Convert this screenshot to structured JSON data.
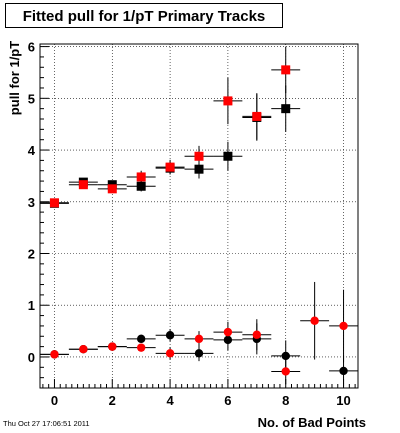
{
  "title": "Fitted pull for 1/pT Primary Tracks",
  "timestamp": "Thu Oct 27 17:06:51 2011",
  "chart_data": {
    "type": "scatter",
    "title": "Fitted pull for 1/pT Primary Tracks",
    "xlabel": "No. of Bad Points",
    "ylabel": "pull for 1/pT",
    "xlim": [
      -0.5,
      10.5
    ],
    "ylim": [
      -0.6,
      6.05
    ],
    "grid": true,
    "xticks": [
      0,
      2,
      4,
      6,
      8,
      10
    ],
    "yticks": [
      0,
      1,
      2,
      3,
      4,
      5,
      6
    ],
    "series": [
      {
        "marker": "square",
        "color": "#000000",
        "points": [
          {
            "x": 0,
            "y": 2.97,
            "err": 0.07
          },
          {
            "x": 1,
            "y": 3.38,
            "err": 0.06
          },
          {
            "x": 2,
            "y": 3.33,
            "err": 0.07
          },
          {
            "x": 3,
            "y": 3.3,
            "err": 0.1
          },
          {
            "x": 4,
            "y": 3.65,
            "err": 0.12
          },
          {
            "x": 5,
            "y": 3.63,
            "err": 0.18
          },
          {
            "x": 6,
            "y": 3.88,
            "err": 0.28
          },
          {
            "x": 7,
            "y": 4.63,
            "err": 0.45
          },
          {
            "x": 8,
            "y": 4.8,
            "err": 0.45
          }
        ]
      },
      {
        "marker": "square",
        "color": "#ff0000",
        "points": [
          {
            "x": 0,
            "y": 2.98,
            "err": 0.06
          },
          {
            "x": 1,
            "y": 3.33,
            "err": 0.07
          },
          {
            "x": 2,
            "y": 3.25,
            "err": 0.08
          },
          {
            "x": 3,
            "y": 3.48,
            "err": 0.12
          },
          {
            "x": 4,
            "y": 3.67,
            "err": 0.14
          },
          {
            "x": 5,
            "y": 3.88,
            "err": 0.2
          },
          {
            "x": 6,
            "y": 4.95,
            "err": 0.45
          },
          {
            "x": 7,
            "y": 4.65,
            "err": 0.45
          },
          {
            "x": 8,
            "y": 5.55,
            "err": 0.45
          }
        ]
      },
      {
        "marker": "circle",
        "color": "#000000",
        "points": [
          {
            "x": 0,
            "y": 0.05,
            "err": 0.03
          },
          {
            "x": 1,
            "y": 0.15,
            "err": 0.04
          },
          {
            "x": 2,
            "y": 0.2,
            "err": 0.05
          },
          {
            "x": 3,
            "y": 0.35,
            "err": 0.08
          },
          {
            "x": 4,
            "y": 0.42,
            "err": 0.12
          },
          {
            "x": 5,
            "y": 0.07,
            "err": 0.15
          },
          {
            "x": 6,
            "y": 0.33,
            "err": 0.2
          },
          {
            "x": 7,
            "y": 0.35,
            "err": 0.3
          },
          {
            "x": 8,
            "y": 0.02,
            "err": 0.3
          },
          {
            "x": 10,
            "y": -0.27,
            "err": 0.3
          }
        ]
      },
      {
        "marker": "circle",
        "color": "#ff0000",
        "points": [
          {
            "x": 0,
            "y": 0.05,
            "err": 0.03
          },
          {
            "x": 1,
            "y": 0.15,
            "err": 0.04
          },
          {
            "x": 2,
            "y": 0.2,
            "err": 0.05
          },
          {
            "x": 3,
            "y": 0.18,
            "err": 0.07
          },
          {
            "x": 4,
            "y": 0.07,
            "err": 0.12
          },
          {
            "x": 5,
            "y": 0.35,
            "err": 0.15
          },
          {
            "x": 6,
            "y": 0.48,
            "err": 0.2
          },
          {
            "x": 7,
            "y": 0.43,
            "err": 0.3
          },
          {
            "x": 8,
            "y": -0.28,
            "err": 0.25
          },
          {
            "x": 9,
            "y": 0.7,
            "err": 0.75
          },
          {
            "x": 10,
            "y": 0.6,
            "err": 0.7
          }
        ]
      }
    ]
  }
}
